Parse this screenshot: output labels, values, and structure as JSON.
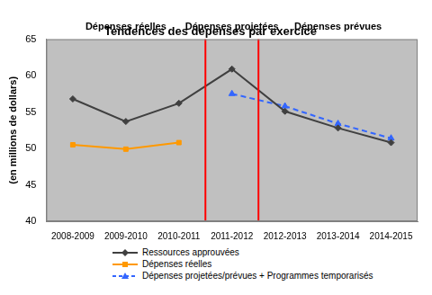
{
  "chart_data": {
    "type": "line",
    "title": "Tendences des dépenses par exercice",
    "y_label": "(en millions de dollars)",
    "annotations": [
      "Dépenses réelles",
      "Dépenses projetées",
      "Dépenses prévues"
    ],
    "categories": [
      "2008-2009",
      "2009-2010",
      "2010-2011",
      "2011-2012",
      "2012-2013",
      "2013-2014",
      "2014-2015"
    ],
    "series": [
      {
        "name": "Ressources approuvées",
        "color": "#404040",
        "marker": "diamond",
        "line_style": "solid",
        "values": [
          56.8,
          53.7,
          56.2,
          60.9,
          55.1,
          52.8,
          50.8
        ]
      },
      {
        "name": "Dépenses réelles",
        "color": "#FF9900",
        "marker": "square",
        "line_style": "solid",
        "values": [
          50.5,
          49.9,
          50.8,
          null,
          null,
          null,
          null
        ]
      },
      {
        "name": "Dépenses projetées/prévues + Programmes temporarisés",
        "color": "#3366FF",
        "marker": "triangle",
        "line_style": "dashed",
        "values": [
          null,
          null,
          null,
          57.5,
          55.8,
          53.4,
          51.4
        ]
      }
    ],
    "ylim": [
      40,
      65
    ],
    "yticks": [
      40,
      45,
      50,
      55,
      60,
      65
    ],
    "grid": false,
    "legend": "bottom"
  }
}
